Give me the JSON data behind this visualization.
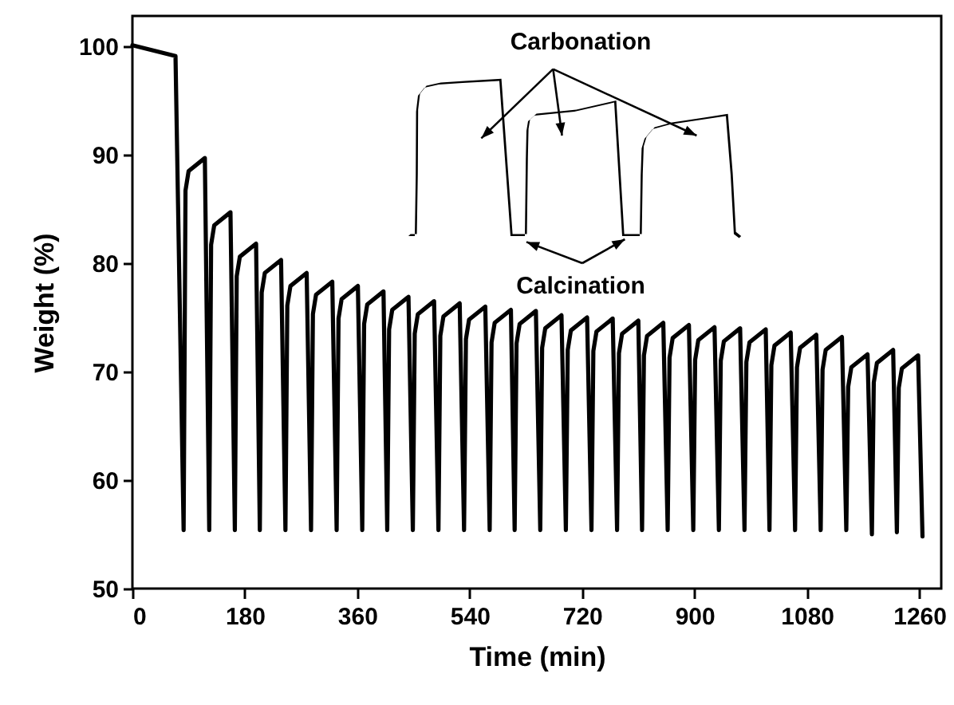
{
  "chart_data": {
    "type": "line",
    "xlabel": "Time (min)",
    "ylabel": "Weight (%)",
    "annotations": [
      "Carbonation",
      "Calcination"
    ],
    "xlim": [
      0,
      1295
    ],
    "xticks": [
      0,
      180,
      360,
      540,
      720,
      900,
      1080,
      1260
    ],
    "ylim": [
      50,
      102.8
    ],
    "yticks": [
      50,
      60,
      70,
      80,
      90,
      100
    ],
    "grid": false,
    "x": [
      0,
      69,
      82,
      85,
      90,
      116,
      123,
      126,
      131,
      157,
      164,
      167,
      172,
      198,
      204,
      207,
      212,
      238,
      245,
      248,
      253,
      279,
      286,
      289,
      294,
      320,
      327,
      330,
      335,
      361,
      368,
      371,
      376,
      402,
      408,
      411,
      416,
      442,
      449,
      452,
      457,
      483,
      490,
      493,
      498,
      524,
      531,
      534,
      539,
      565,
      572,
      575,
      580,
      606,
      612,
      615,
      620,
      646,
      653,
      656,
      661,
      687,
      694,
      697,
      702,
      728,
      735,
      738,
      743,
      769,
      776,
      779,
      784,
      810,
      816,
      819,
      824,
      850,
      857,
      860,
      865,
      891,
      898,
      901,
      906,
      932,
      939,
      942,
      947,
      973,
      980,
      983,
      988,
      1014,
      1020,
      1023,
      1028,
      1054,
      1061,
      1064,
      1069,
      1095,
      1102,
      1105,
      1110,
      1136,
      1143,
      1146,
      1151,
      1177,
      1184,
      1187,
      1192,
      1218,
      1224,
      1227,
      1232,
      1258,
      1265
    ],
    "series": [
      {
        "color": "#000000",
        "values": [
          100.1,
          99.1,
          55.4,
          86.7,
          88.5,
          89.7,
          55.4,
          81.7,
          83.5,
          84.7,
          55.4,
          78.8,
          80.6,
          81.8,
          55.4,
          77.3,
          79.1,
          80.3,
          55.4,
          76.1,
          77.9,
          79.1,
          55.4,
          75.3,
          77.1,
          78.3,
          55.4,
          74.9,
          76.7,
          77.9,
          55.4,
          74.4,
          76.2,
          77.4,
          55.4,
          73.9,
          75.7,
          76.9,
          55.4,
          73.5,
          75.3,
          76.5,
          55.4,
          73.3,
          75.1,
          76.3,
          55.4,
          73.0,
          74.8,
          76.0,
          55.4,
          72.7,
          74.5,
          75.7,
          55.4,
          72.6,
          74.4,
          75.6,
          55.4,
          72.2,
          74.0,
          75.2,
          55.4,
          72.0,
          73.8,
          75.0,
          55.4,
          71.9,
          73.7,
          74.9,
          55.4,
          71.7,
          73.5,
          74.7,
          55.4,
          71.5,
          73.3,
          74.5,
          55.4,
          71.3,
          73.1,
          74.3,
          55.4,
          71.1,
          72.9,
          74.1,
          55.4,
          71.0,
          72.8,
          74.0,
          55.4,
          70.9,
          72.7,
          73.9,
          55.4,
          70.6,
          72.4,
          73.6,
          55.4,
          70.4,
          72.2,
          73.4,
          55.4,
          70.2,
          72.0,
          73.2,
          55.4,
          68.6,
          70.4,
          71.6,
          55.0,
          69.0,
          70.8,
          72.0,
          55.2,
          68.5,
          70.3,
          71.5,
          54.8
        ]
      }
    ]
  }
}
